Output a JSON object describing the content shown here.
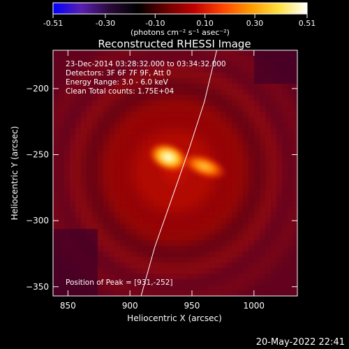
{
  "colorbar": {
    "ticks": [
      "-0.51",
      "-0.30",
      "-0.10",
      "0.10",
      "0.30",
      "0.51"
    ],
    "tick_values": [
      -0.51,
      -0.3,
      -0.1,
      0.1,
      0.3,
      0.51
    ],
    "range": [
      -0.51,
      0.51
    ],
    "units_label": "(photons cm⁻² s⁻¹ asec⁻²)",
    "colors": [
      "#0000ff",
      "#5a1fb0",
      "#2a0a3a",
      "#000000",
      "#6a0000",
      "#c00000",
      "#ff4400",
      "#ff9a00",
      "#ffe040",
      "#ffffff"
    ]
  },
  "chart_data": {
    "type": "heatmap",
    "title": "Reconstructed RHESSI Image",
    "xlabel": "Heliocentric X (arcsec)",
    "ylabel": "Heliocentric Y (arcsec)",
    "xlim": [
      838,
      1035
    ],
    "ylim": [
      -357,
      -171
    ],
    "xticks": [
      850,
      900,
      950,
      1000
    ],
    "yticks": [
      -200,
      -250,
      -300,
      -350
    ],
    "info_lines": [
      "23-Dec-2014 03:28:32.000 to 03:34:32.000",
      "Detectors: 3F 6F 7F 9F, Att 0",
      "Energy Range: 3.0 - 6.0 keV",
      "Clean     Total counts: 1.75E+04"
    ],
    "peak_label": "Position of Peak = [931,-252]",
    "peak": [
      931,
      -252
    ],
    "sources": [
      {
        "x": 931,
        "y": -252,
        "intensity": 0.51
      },
      {
        "x": 960,
        "y": -259,
        "intensity": 0.36
      }
    ],
    "limb": [
      [
        909,
        -357
      ],
      [
        920,
        -320
      ],
      [
        935,
        -280
      ],
      [
        948,
        -245
      ],
      [
        960,
        -210
      ],
      [
        970,
        -171
      ]
    ]
  },
  "timestamp": "20-May-2022 22:41"
}
